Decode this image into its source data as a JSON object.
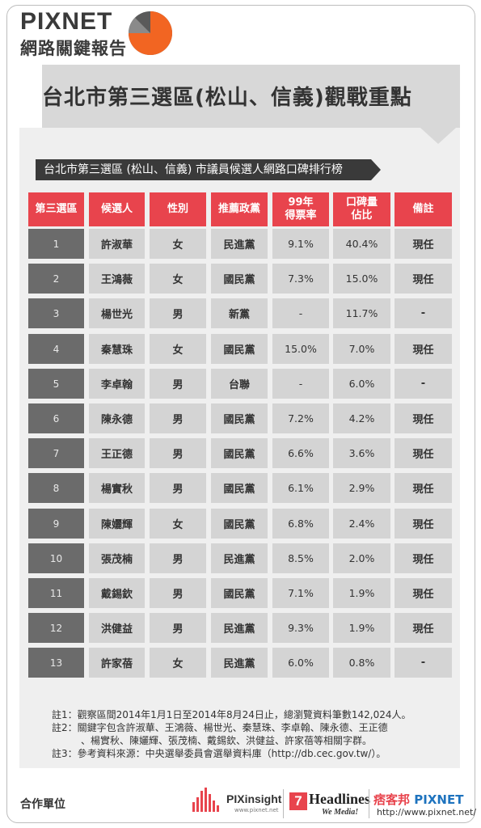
{
  "brand": {
    "name": "PIXNET",
    "report": "網路關鍵報告"
  },
  "title": "台北市第三選區(松山、信義)觀戰重點",
  "subtitle": "台北市第三選區 (松山、信義) 市議員候選人網路口碑排行榜",
  "table": {
    "headers": [
      "第三選區",
      "候選人",
      "性別",
      "推薦政黨",
      "99年\n得票率",
      "口碑量\n佔比",
      "備註"
    ],
    "rows": [
      {
        "no": "1",
        "name": "許淑華",
        "gender": "女",
        "party": "民進黨",
        "vote99": "9.1%",
        "share": "40.4%",
        "note": "現任"
      },
      {
        "no": "2",
        "name": "王鴻薇",
        "gender": "女",
        "party": "國民黨",
        "vote99": "7.3%",
        "share": "15.0%",
        "note": "現任"
      },
      {
        "no": "3",
        "name": "楊世光",
        "gender": "男",
        "party": "新黨",
        "vote99": "-",
        "share": "11.7%",
        "note": "-"
      },
      {
        "no": "4",
        "name": "秦慧珠",
        "gender": "女",
        "party": "國民黨",
        "vote99": "15.0%",
        "share": "7.0%",
        "note": "現任"
      },
      {
        "no": "5",
        "name": "李卓翰",
        "gender": "男",
        "party": "台聯",
        "vote99": "-",
        "share": "6.0%",
        "note": "-"
      },
      {
        "no": "6",
        "name": "陳永德",
        "gender": "男",
        "party": "國民黨",
        "vote99": "7.2%",
        "share": "4.2%",
        "note": "現任"
      },
      {
        "no": "7",
        "name": "王正德",
        "gender": "男",
        "party": "國民黨",
        "vote99": "6.6%",
        "share": "3.6%",
        "note": "現任"
      },
      {
        "no": "8",
        "name": "楊實秋",
        "gender": "男",
        "party": "國民黨",
        "vote99": "6.1%",
        "share": "2.9%",
        "note": "現任"
      },
      {
        "no": "9",
        "name": "陳孋輝",
        "gender": "女",
        "party": "國民黨",
        "vote99": "6.8%",
        "share": "2.4%",
        "note": "現任"
      },
      {
        "no": "10",
        "name": "張茂楠",
        "gender": "男",
        "party": "民進黨",
        "vote99": "8.5%",
        "share": "2.0%",
        "note": "現任"
      },
      {
        "no": "11",
        "name": "戴錫欽",
        "gender": "男",
        "party": "國民黨",
        "vote99": "7.1%",
        "share": "1.9%",
        "note": "現任"
      },
      {
        "no": "12",
        "name": "洪健益",
        "gender": "男",
        "party": "民進黨",
        "vote99": "9.3%",
        "share": "1.9%",
        "note": "現任"
      },
      {
        "no": "13",
        "name": "許家蓓",
        "gender": "女",
        "party": "民進黨",
        "vote99": "6.0%",
        "share": "0.8%",
        "note": "-"
      }
    ]
  },
  "notes": [
    "註1：觀察區間2014年1月1日至2014年8月24日止，總瀏覽資料筆數142,024人。",
    "註2：關鍵字包含許淑華、王鴻薇、楊世光、秦慧珠、李卓翰、陳永德、王正德",
    "、楊實秋、陳孋輝、張茂楠、戴錫欽、洪健益、許家蓓等相關字群。",
    "註3：參考資料來源：中央選舉委員會選舉資料庫（http://db.cec.gov.tw/）。"
  ],
  "footer": {
    "label": "合作單位",
    "pix_name": "PIXinsight",
    "pix_url": "www.pixnet.net",
    "seven": "7",
    "headlines": "Headlines",
    "headlines_tag": "We Media!",
    "px_cn": "痞客邦",
    "px_en": "PIXNET",
    "px_url": "http://www.pixnet.net/"
  },
  "colors": {
    "accent": "#e8444d",
    "dark": "#3a3a3a",
    "cell": "#d4d4d4",
    "num_cell": "#6b6b6b",
    "pie_orange": "#f26522"
  }
}
